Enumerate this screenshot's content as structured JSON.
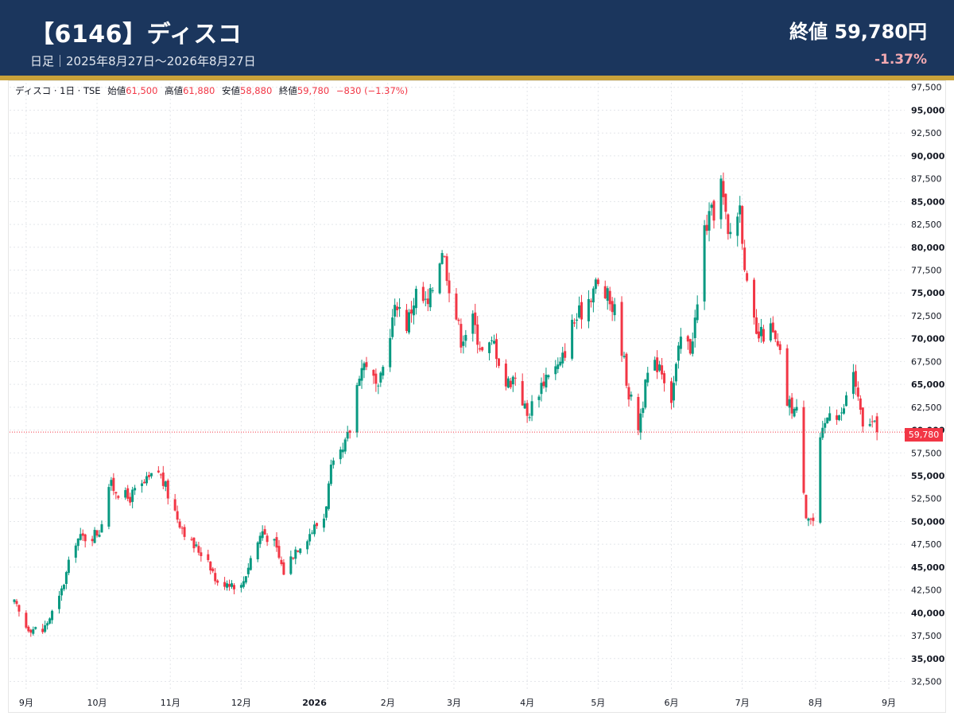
{
  "header": {
    "title": "【6146】ディスコ",
    "subtitle": "日足｜2025年8月27日〜2026年8月27日",
    "close_label": "終値 59,780円",
    "change": "-1.37%"
  },
  "legend": {
    "symbol": "ディスコ · 1日 · TSE",
    "open_label": "始値",
    "open": "61,500",
    "high_label": "高値",
    "high": "61,880",
    "low_label": "安値",
    "low": "58,880",
    "close_label": "終値",
    "close": "59,780",
    "change": "−830 (−1.37%)"
  },
  "colors": {
    "up": "#089981",
    "down": "#f23645",
    "header": "#1b365d",
    "stripe": "#c9a23a"
  },
  "chart_data": {
    "type": "candlestick",
    "title": "【6146】ディスコ",
    "last_price": 59780,
    "last_price_label": "59,780",
    "ylim": [
      31500,
      98000
    ],
    "yticks": [
      32500,
      35000,
      37500,
      40000,
      42500,
      45000,
      47500,
      50000,
      52500,
      55000,
      57500,
      60000,
      62500,
      65000,
      67500,
      70000,
      72500,
      75000,
      77500,
      80000,
      82500,
      85000,
      87500,
      90000,
      92500,
      95000,
      97500
    ],
    "ytick_labels": [
      "32,500",
      "35,000",
      "37,500",
      "40,000",
      "42,500",
      "45,000",
      "47,500",
      "50,000",
      "52,500",
      "55,000",
      "57,500",
      "60,000",
      "62,500",
      "65,000",
      "67,500",
      "70,000",
      "72,500",
      "75,000",
      "77,500",
      "80,000",
      "82,500",
      "85,000",
      "87,500",
      "90,000",
      "92,500",
      "95,000",
      "97,500"
    ],
    "x_start": "2025-08-27",
    "x_end": "2026-08-27",
    "xticks": [
      {
        "date": "2025-09-01",
        "label": "9月"
      },
      {
        "date": "2025-10-01",
        "label": "10月"
      },
      {
        "date": "2025-11-01",
        "label": "11月"
      },
      {
        "date": "2025-12-01",
        "label": "12月"
      },
      {
        "date": "2026-01-01",
        "label": "2026"
      },
      {
        "date": "2026-02-01",
        "label": "2月"
      },
      {
        "date": "2026-03-01",
        "label": "3月"
      },
      {
        "date": "2026-04-01",
        "label": "4月"
      },
      {
        "date": "2026-05-01",
        "label": "5月"
      },
      {
        "date": "2026-06-01",
        "label": "6月"
      },
      {
        "date": "2026-07-01",
        "label": "7月"
      },
      {
        "date": "2026-08-01",
        "label": "8月"
      },
      {
        "date": "2026-09-01",
        "label": "9月"
      }
    ],
    "closes": [
      [
        "2025-08-27",
        41000
      ],
      [
        "2025-09-01",
        38500
      ],
      [
        "2025-09-08",
        38000
      ],
      [
        "2025-09-15",
        41500
      ],
      [
        "2025-09-22",
        48000
      ],
      [
        "2025-09-29",
        48500
      ],
      [
        "2025-10-02",
        49000
      ],
      [
        "2025-10-06",
        54000
      ],
      [
        "2025-10-09",
        53500
      ],
      [
        "2025-10-14",
        52500
      ],
      [
        "2025-10-20",
        53800
      ],
      [
        "2025-10-27",
        55500
      ],
      [
        "2025-11-04",
        50500
      ],
      [
        "2025-11-10",
        47500
      ],
      [
        "2025-11-17",
        46000
      ],
      [
        "2025-11-21",
        43000
      ],
      [
        "2025-11-25",
        43500
      ],
      [
        "2025-12-01",
        42800
      ],
      [
        "2025-12-05",
        46000
      ],
      [
        "2025-12-10",
        49000
      ],
      [
        "2025-12-15",
        47500
      ],
      [
        "2025-12-19",
        44500
      ],
      [
        "2025-12-24",
        47000
      ],
      [
        "2026-01-05",
        50500
      ],
      [
        "2026-01-08",
        55500
      ],
      [
        "2026-01-13",
        57500
      ],
      [
        "2026-01-16",
        60000
      ],
      [
        "2026-01-20",
        66500
      ],
      [
        "2026-01-23",
        67500
      ],
      [
        "2026-01-28",
        64000
      ],
      [
        "2026-02-02",
        71000
      ],
      [
        "2026-02-05",
        74000
      ],
      [
        "2026-02-09",
        71500
      ],
      [
        "2026-02-13",
        75000
      ],
      [
        "2026-02-18",
        73500
      ],
      [
        "2026-02-24",
        80000
      ],
      [
        "2026-02-27",
        76000
      ],
      [
        "2026-03-04",
        70000
      ],
      [
        "2026-03-09",
        72000
      ],
      [
        "2026-03-13",
        68500
      ],
      [
        "2026-03-18",
        69500
      ],
      [
        "2026-03-23",
        65000
      ],
      [
        "2026-03-27",
        66000
      ],
      [
        "2026-04-01",
        61500
      ],
      [
        "2026-04-06",
        64500
      ],
      [
        "2026-04-10",
        66500
      ],
      [
        "2026-04-15",
        67000
      ],
      [
        "2026-04-20",
        71500
      ],
      [
        "2026-04-24",
        73000
      ],
      [
        "2026-04-30",
        76000
      ],
      [
        "2026-05-05",
        74500
      ],
      [
        "2026-05-09",
        72500
      ],
      [
        "2026-05-14",
        64000
      ],
      [
        "2026-05-18",
        60500
      ],
      [
        "2026-05-22",
        66000
      ],
      [
        "2026-05-27",
        67500
      ],
      [
        "2026-06-01",
        63500
      ],
      [
        "2026-06-05",
        70000
      ],
      [
        "2026-06-09",
        69000
      ],
      [
        "2026-06-12",
        73500
      ],
      [
        "2026-06-15",
        82000
      ],
      [
        "2026-06-19",
        84000
      ],
      [
        "2026-06-22",
        87000
      ],
      [
        "2026-06-25",
        81000
      ],
      [
        "2026-06-30",
        84500
      ],
      [
        "2026-07-03",
        75500
      ],
      [
        "2026-07-07",
        70000
      ],
      [
        "2026-07-13",
        71000
      ],
      [
        "2026-07-17",
        68000
      ],
      [
        "2026-07-20",
        63000
      ],
      [
        "2026-07-24",
        62000
      ],
      [
        "2026-07-28",
        51000
      ],
      [
        "2026-07-31",
        50000
      ],
      [
        "2026-08-03",
        58500
      ],
      [
        "2026-08-07",
        62500
      ],
      [
        "2026-08-12",
        61500
      ],
      [
        "2026-08-17",
        66500
      ],
      [
        "2026-08-21",
        60000
      ],
      [
        "2026-08-24",
        61000
      ],
      [
        "2026-08-27",
        59780
      ]
    ]
  }
}
